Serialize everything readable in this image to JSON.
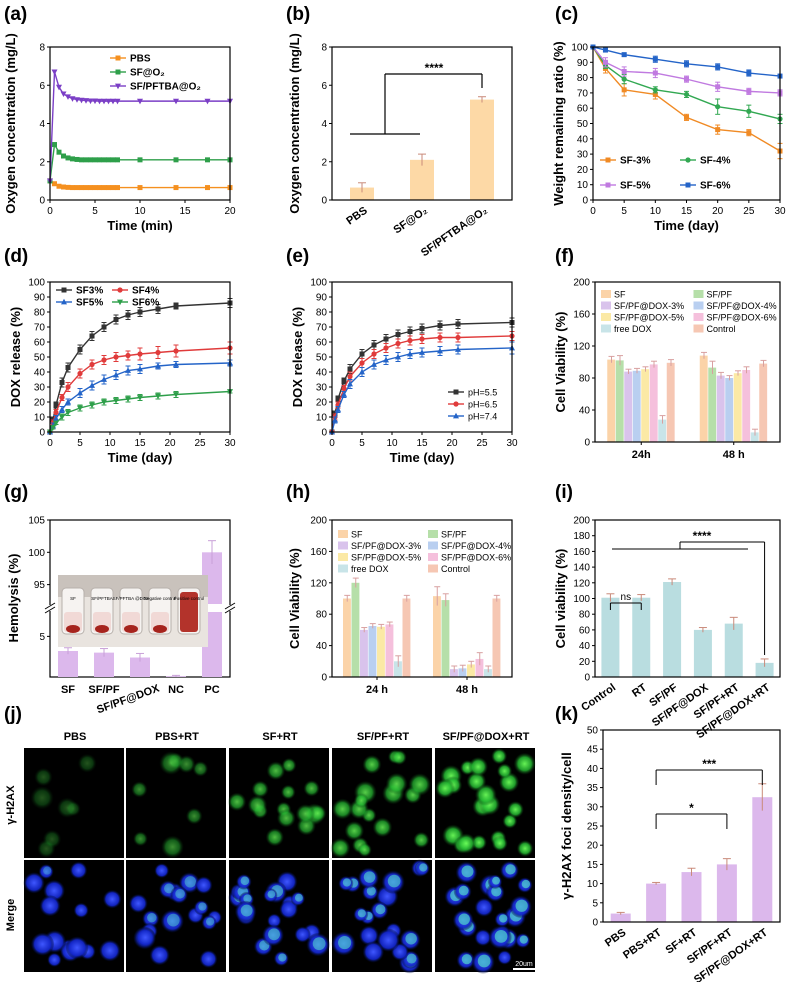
{
  "figure": {
    "panel_labels": [
      "(a)",
      "(b)",
      "(c)",
      "(d)",
      "(e)",
      "(f)",
      "(g)",
      "(h)",
      "(i)",
      "(j)",
      "(k)"
    ],
    "micro_columns": [
      "PBS",
      "PBS+RT",
      "SF+RT",
      "SF/PF+RT",
      "SF/PF@DOX+RT"
    ],
    "micro_rows": [
      "γ-H2AX",
      "Merge"
    ],
    "scale_bar": "20um",
    "colors": {
      "green_channel": "#39c83a",
      "blue_channel": "#1a2ee0",
      "bar_b": "#fdd9a6",
      "bar_purple": "#dcb8ec",
      "bar_teal": "#b9dde0"
    }
  },
  "chart_data": [
    {
      "id": "a",
      "type": "line",
      "xlabel": "Time (min)",
      "ylabel": "Oxygen concentration (mg/L)",
      "xlim": [
        0,
        20
      ],
      "ylim": [
        0,
        8
      ],
      "xticks": [
        0,
        5,
        10,
        15,
        20
      ],
      "yticks": [
        0,
        2,
        4,
        6,
        8
      ],
      "legend": [
        "PBS",
        "SF@O₂",
        "SF/PFTBA@O₂"
      ],
      "series": [
        {
          "name": "PBS",
          "color": "#f5901f",
          "x": [
            0,
            0.5,
            1,
            1.5,
            2,
            2.5,
            3,
            3.5,
            4,
            4.5,
            5,
            5.5,
            6,
            6.5,
            7,
            7.5,
            10,
            14,
            17.5,
            20
          ],
          "y": [
            1.0,
            0.85,
            0.72,
            0.68,
            0.66,
            0.65,
            0.65,
            0.65,
            0.65,
            0.65,
            0.65,
            0.65,
            0.65,
            0.65,
            0.65,
            0.65,
            0.65,
            0.65,
            0.65,
            0.65
          ]
        },
        {
          "name": "SF@O₂",
          "color": "#2e9f4a",
          "x": [
            0,
            0.5,
            1,
            1.5,
            2,
            2.5,
            3,
            3.5,
            4,
            4.5,
            5,
            5.5,
            6,
            6.5,
            7,
            7.5,
            10,
            14,
            17.5,
            20
          ],
          "y": [
            1.0,
            2.9,
            2.5,
            2.3,
            2.2,
            2.15,
            2.12,
            2.1,
            2.1,
            2.1,
            2.1,
            2.1,
            2.1,
            2.1,
            2.1,
            2.1,
            2.1,
            2.1,
            2.1,
            2.1
          ]
        },
        {
          "name": "SF/PFTBA@O₂",
          "color": "#7b3fc6",
          "x": [
            0,
            0.5,
            1,
            1.5,
            2,
            2.5,
            3,
            3.5,
            4,
            4.5,
            5,
            5.5,
            6,
            6.5,
            7,
            7.5,
            10,
            14,
            17.5,
            20
          ],
          "y": [
            1.0,
            6.7,
            5.9,
            5.55,
            5.4,
            5.3,
            5.25,
            5.22,
            5.2,
            5.18,
            5.18,
            5.17,
            5.17,
            5.17,
            5.17,
            5.17,
            5.17,
            5.17,
            5.17,
            5.17
          ]
        }
      ]
    },
    {
      "id": "b",
      "type": "bar",
      "ylabel": "Oxygen concentration (mg/L)",
      "ylim": [
        0,
        8
      ],
      "yticks": [
        0,
        2,
        4,
        6,
        8
      ],
      "categories": [
        "PBS",
        "SF@O₂",
        "SF/PFTBA@O₂"
      ],
      "values": [
        0.65,
        2.1,
        5.25
      ],
      "errors": [
        0.25,
        0.3,
        0.15
      ],
      "significance": "****"
    },
    {
      "id": "c",
      "type": "line",
      "xlabel": "Time (day)",
      "ylabel": "Weight remaining ratio (%)",
      "xlim": [
        0,
        30
      ],
      "ylim": [
        0,
        100
      ],
      "xticks": [
        0,
        5,
        10,
        15,
        20,
        25,
        30
      ],
      "yticks": [
        0,
        10,
        20,
        30,
        40,
        50,
        60,
        70,
        80,
        90,
        100
      ],
      "legend": [
        "SF-3%",
        "SF-4%",
        "SF-5%",
        "SF-6%"
      ],
      "series": [
        {
          "name": "SF-3%",
          "color": "#f08a24",
          "x": [
            0,
            2,
            5,
            10,
            15,
            20,
            25,
            30
          ],
          "y": [
            100,
            86,
            72,
            69,
            54,
            46,
            44,
            32
          ],
          "err": [
            0,
            3,
            4,
            3,
            2,
            3,
            2,
            5
          ]
        },
        {
          "name": "SF-4%",
          "color": "#32a852",
          "x": [
            0,
            2,
            5,
            10,
            15,
            20,
            25,
            30
          ],
          "y": [
            100,
            88,
            79,
            72,
            69,
            61,
            58,
            53
          ],
          "err": [
            0,
            2,
            3,
            2,
            2,
            5,
            4,
            3
          ]
        },
        {
          "name": "SF-5%",
          "color": "#c07ae0",
          "x": [
            0,
            2,
            5,
            10,
            15,
            20,
            25,
            30
          ],
          "y": [
            100,
            90,
            84,
            83,
            79,
            74,
            71,
            70
          ],
          "err": [
            0,
            3,
            3,
            3,
            2,
            3,
            2,
            2
          ]
        },
        {
          "name": "SF-6%",
          "color": "#2464c8",
          "x": [
            0,
            2,
            5,
            10,
            15,
            20,
            25,
            30
          ],
          "y": [
            100,
            98,
            95,
            92,
            89,
            87,
            83,
            81
          ],
          "err": [
            0,
            1,
            1,
            2,
            2,
            2,
            2,
            1
          ]
        }
      ]
    },
    {
      "id": "d",
      "type": "line",
      "xlabel": "Time (day)",
      "ylabel": "DOX release (%)",
      "xlim": [
        0,
        30
      ],
      "ylim": [
        0,
        100
      ],
      "xticks": [
        0,
        5,
        10,
        15,
        20,
        25,
        30
      ],
      "yticks": [
        0,
        10,
        20,
        30,
        40,
        50,
        60,
        70,
        80,
        90,
        100
      ],
      "legend": [
        "SF3%",
        "SF4%",
        "SF5%",
        "SF6%"
      ],
      "series": [
        {
          "name": "SF3%",
          "color": "#333333",
          "x": [
            0,
            0.5,
            1,
            2,
            3,
            5,
            7,
            9,
            11,
            13,
            15,
            18,
            21,
            30
          ],
          "y": [
            0,
            8,
            18,
            33,
            43,
            55,
            64,
            70,
            75,
            78,
            80,
            82,
            84,
            86
          ],
          "err": [
            0,
            2,
            2,
            3,
            3,
            3,
            3,
            3,
            3,
            3,
            3,
            3,
            2,
            3
          ]
        },
        {
          "name": "SF4%",
          "color": "#e03b3b",
          "x": [
            0,
            0.5,
            1,
            2,
            3,
            5,
            7,
            9,
            11,
            13,
            15,
            18,
            21,
            30
          ],
          "y": [
            0,
            6,
            13,
            23,
            30,
            39,
            45,
            48,
            50,
            51,
            52,
            53,
            54,
            56
          ],
          "err": [
            0,
            2,
            2,
            2,
            3,
            3,
            3,
            3,
            3,
            3,
            4,
            4,
            4,
            4
          ]
        },
        {
          "name": "SF5%",
          "color": "#2464c8",
          "x": [
            0,
            0.5,
            1,
            2,
            3,
            5,
            7,
            9,
            11,
            13,
            15,
            18,
            21,
            30
          ],
          "y": [
            0,
            4,
            9,
            15,
            20,
            26,
            31,
            35,
            38,
            41,
            42,
            44,
            45,
            46
          ],
          "err": [
            0,
            2,
            2,
            2,
            2,
            3,
            3,
            3,
            3,
            3,
            3,
            2,
            2,
            2
          ]
        },
        {
          "name": "SF6%",
          "color": "#2e9f4a",
          "x": [
            0,
            0.5,
            1,
            2,
            3,
            5,
            7,
            9,
            11,
            13,
            15,
            18,
            21,
            30
          ],
          "y": [
            0,
            3,
            6,
            10,
            13,
            16,
            18,
            20,
            21,
            22,
            23,
            24,
            25,
            27
          ],
          "err": [
            0,
            1,
            1,
            2,
            2,
            2,
            2,
            2,
            2,
            2,
            2,
            2,
            2,
            1
          ]
        }
      ]
    },
    {
      "id": "e",
      "type": "line",
      "xlabel": "Time (day)",
      "ylabel": "DOX release (%)",
      "xlim": [
        0,
        30
      ],
      "ylim": [
        0,
        100
      ],
      "xticks": [
        0,
        5,
        10,
        15,
        20,
        25,
        30
      ],
      "yticks": [
        0,
        10,
        20,
        30,
        40,
        50,
        60,
        70,
        80,
        90,
        100
      ],
      "legend": [
        "pH=5.5",
        "pH=6.5",
        "pH=7.4"
      ],
      "series": [
        {
          "name": "pH=5.5",
          "color": "#333333",
          "x": [
            0,
            0.5,
            1,
            2,
            3,
            5,
            7,
            9,
            11,
            13,
            15,
            18,
            21,
            30
          ],
          "y": [
            0,
            12,
            22,
            34,
            42,
            52,
            58,
            62,
            65,
            67,
            69,
            71,
            72,
            73
          ],
          "err": [
            0,
            2,
            2,
            2,
            3,
            3,
            3,
            3,
            3,
            3,
            3,
            3,
            3,
            3
          ]
        },
        {
          "name": "pH=6.5",
          "color": "#e03b3b",
          "x": [
            0,
            0.5,
            1,
            2,
            3,
            5,
            7,
            9,
            11,
            13,
            15,
            18,
            21,
            30
          ],
          "y": [
            0,
            10,
            18,
            29,
            37,
            46,
            52,
            56,
            59,
            61,
            62,
            63,
            63,
            64
          ],
          "err": [
            0,
            2,
            2,
            2,
            3,
            3,
            3,
            3,
            3,
            3,
            3,
            3,
            3,
            3
          ]
        },
        {
          "name": "pH=7.4",
          "color": "#2464c8",
          "x": [
            0,
            0.5,
            1,
            2,
            3,
            5,
            7,
            9,
            11,
            13,
            15,
            18,
            21,
            30
          ],
          "y": [
            0,
            8,
            15,
            25,
            32,
            40,
            45,
            48,
            50,
            52,
            53,
            54,
            55,
            56
          ],
          "err": [
            0,
            2,
            2,
            2,
            3,
            3,
            3,
            3,
            3,
            3,
            3,
            3,
            3,
            4
          ]
        }
      ]
    },
    {
      "id": "f",
      "type": "bar",
      "ylabel": "Cell Viability (%)",
      "ylim": [
        0,
        200
      ],
      "yticks": [
        0,
        40,
        80,
        120,
        160,
        200
      ],
      "categories": [
        "24h",
        "48 h"
      ],
      "legend": [
        "SF",
        "SF/PF",
        "SF/PF@DOX-3%",
        "SF/PF@DOX-4%",
        "SF/PF@DOX-5%",
        "SF/PF@DOX-6%",
        "free DOX",
        "Control"
      ],
      "series": [
        {
          "name": "SF",
          "color": "#fbd3a8",
          "values": [
            103,
            108
          ],
          "err": [
            4,
            4
          ]
        },
        {
          "name": "SF/PF",
          "color": "#b6dfa9",
          "values": [
            102,
            93
          ],
          "err": [
            6,
            8
          ]
        },
        {
          "name": "SF/PF@DOX-3%",
          "color": "#d9c3ec",
          "values": [
            88,
            83
          ],
          "err": [
            3,
            4
          ]
        },
        {
          "name": "SF/PF@DOX-4%",
          "color": "#b9cff0",
          "values": [
            89,
            80
          ],
          "err": [
            3,
            3
          ]
        },
        {
          "name": "SF/PF@DOX-5%",
          "color": "#fbe9a5",
          "values": [
            91,
            86
          ],
          "err": [
            3,
            3
          ]
        },
        {
          "name": "SF/PF@DOX-6%",
          "color": "#f5c0dc",
          "values": [
            97,
            90
          ],
          "err": [
            4,
            4
          ]
        },
        {
          "name": "free DOX",
          "color": "#c8e4e8",
          "values": [
            28,
            12
          ],
          "err": [
            5,
            4
          ]
        },
        {
          "name": "Control",
          "color": "#f6c7b3",
          "values": [
            99,
            98
          ],
          "err": [
            4,
            4
          ]
        }
      ]
    },
    {
      "id": "g",
      "type": "bar",
      "ylabel": "Hemolysis (%)",
      "categories": [
        "SF",
        "SF/PF",
        "SF/PF@DOX",
        "NC",
        "PC"
      ],
      "values": [
        3.2,
        3.0,
        2.4,
        0.1,
        100
      ],
      "errors": [
        0.4,
        0.5,
        0.5,
        0.1,
        1.8
      ],
      "yticks_lower": [
        5
      ],
      "yticks_upper": [
        95,
        100,
        105
      ],
      "inset_labels": [
        "SF",
        "SF/PFTBA",
        "SF/PFTBA @DOX",
        "Negative control",
        "Positive control"
      ]
    },
    {
      "id": "h",
      "type": "bar",
      "ylabel": "Cell Viability (%)",
      "ylim": [
        0,
        200
      ],
      "yticks": [
        0,
        40,
        80,
        120,
        160,
        200
      ],
      "categories": [
        "24 h",
        "48 h"
      ],
      "legend": [
        "SF",
        "SF/PF",
        "SF/PF@DOX-3%",
        "SF/PF@DOX-4%",
        "SF/PF@DOX-5%",
        "SF/PF@DOX-6%",
        "free DOX",
        "Control"
      ],
      "series": [
        {
          "name": "SF",
          "color": "#fbd3a8",
          "values": [
            100,
            103
          ],
          "err": [
            4,
            12
          ]
        },
        {
          "name": "SF/PF",
          "color": "#b6dfa9",
          "values": [
            120,
            98
          ],
          "err": [
            6,
            8
          ]
        },
        {
          "name": "SF/PF@DOX-3%",
          "color": "#d9c3ec",
          "values": [
            60,
            10
          ],
          "err": [
            3,
            4
          ]
        },
        {
          "name": "SF/PF@DOX-4%",
          "color": "#b9cff0",
          "values": [
            65,
            11
          ],
          "err": [
            3,
            4
          ]
        },
        {
          "name": "SF/PF@DOX-5%",
          "color": "#fbe9a5",
          "values": [
            64,
            16
          ],
          "err": [
            3,
            4
          ]
        },
        {
          "name": "SF/PF@DOX-6%",
          "color": "#f5c0dc",
          "values": [
            67,
            23
          ],
          "err": [
            3,
            8
          ]
        },
        {
          "name": "free DOX",
          "color": "#c8e4e8",
          "values": [
            20,
            10
          ],
          "err": [
            7,
            4
          ]
        },
        {
          "name": "Control",
          "color": "#f6c7b3",
          "values": [
            100,
            100
          ],
          "err": [
            4,
            4
          ]
        }
      ]
    },
    {
      "id": "i",
      "type": "bar",
      "ylabel": "Cell viability (%)",
      "ylim": [
        0,
        200
      ],
      "yticks": [
        0,
        20,
        40,
        60,
        80,
        100,
        120,
        140,
        160,
        180,
        200
      ],
      "categories": [
        "Control",
        "RT",
        "SF/PF",
        "SF/PF@DOX",
        "SF/PF+RT",
        "SF/PF@DOX+RT"
      ],
      "values": [
        101,
        101,
        121,
        60,
        68,
        18
      ],
      "errors": [
        5,
        4,
        4,
        3,
        8,
        5
      ],
      "significance": [
        "ns",
        "****"
      ]
    },
    {
      "id": "k",
      "type": "bar",
      "ylabel": "γ-H2AX foci density/cell",
      "ylim": [
        0,
        50
      ],
      "yticks": [
        0,
        5,
        10,
        15,
        20,
        25,
        30,
        35,
        40,
        45,
        50
      ],
      "categories": [
        "PBS",
        "PBS+RT",
        "SF+RT",
        "SF/PF+RT",
        "SF/PF@DOX+RT"
      ],
      "values": [
        2.2,
        10,
        13,
        15,
        32.5
      ],
      "errors": [
        0.3,
        0.3,
        1,
        1.5,
        3.5
      ],
      "significance": [
        "*",
        "***"
      ]
    }
  ]
}
